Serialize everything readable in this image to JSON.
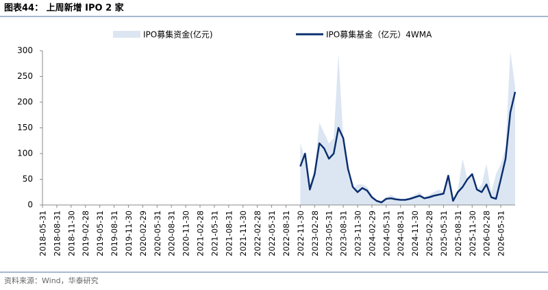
{
  "chart_data": {
    "type": "line",
    "title": "图表44：  上周新增 IPO 2 家",
    "source": "资料来源：Wind，华泰研究",
    "categories": [
      "2018-05-31",
      null,
      null,
      "2018-08-31",
      null,
      null,
      "2018-11-30",
      null,
      null,
      "2019-02-28",
      null,
      null,
      "2019-05-31",
      null,
      null,
      "2019-08-31",
      null,
      null,
      "2019-11-30",
      null,
      null,
      "2020-02-29",
      null,
      null,
      "2020-05-31",
      null,
      null,
      "2020-08-31",
      null,
      null,
      "2020-11-30",
      null,
      null,
      "2021-02-28",
      null,
      null,
      "2021-05-31",
      null,
      null,
      "2021-08-31",
      null,
      null,
      "2021-11-30",
      null,
      null,
      "2022-02-28",
      null,
      null,
      "2022-05-31",
      null,
      null,
      "2022-08-31",
      null,
      null,
      "2022-11-30",
      null,
      null,
      "2023-02-28",
      null,
      null,
      "2023-05-31",
      null,
      null,
      "2023-08-31",
      null,
      null,
      "2023-11-30",
      null,
      null,
      "2024-02-29",
      null,
      null,
      "2024-05-31",
      null,
      null,
      "2024-08-31",
      null,
      null,
      "2024-11-30",
      null,
      null,
      "2025-02-28",
      null,
      null,
      "2025-05-31",
      null,
      null,
      "2025-08-31",
      null,
      null,
      "2025-11-30",
      null,
      null,
      "2026-02-28",
      null,
      null,
      "2026-05-31",
      null,
      null,
      null
    ],
    "series": [
      {
        "name": "IPO募集资金(亿元)",
        "type": "area",
        "color": "#dce6f2",
        "values": [
          null,
          null,
          null,
          null,
          null,
          null,
          null,
          null,
          null,
          null,
          null,
          null,
          null,
          null,
          null,
          null,
          null,
          null,
          null,
          null,
          null,
          null,
          null,
          null,
          null,
          null,
          null,
          null,
          null,
          null,
          null,
          null,
          null,
          null,
          null,
          null,
          null,
          null,
          null,
          null,
          null,
          null,
          null,
          null,
          null,
          null,
          null,
          null,
          null,
          null,
          null,
          null,
          null,
          null,
          120,
          90,
          40,
          70,
          160,
          140,
          120,
          130,
          295,
          130,
          60,
          30,
          40,
          40,
          35,
          20,
          10,
          8,
          15,
          20,
          15,
          12,
          12,
          15,
          20,
          25,
          15,
          20,
          25,
          30,
          25,
          60,
          10,
          30,
          90,
          50,
          60,
          30,
          40,
          80,
          25,
          60,
          80,
          110,
          300,
          230
        ]
      },
      {
        "name": "IPO募集基金（亿元）4WMA",
        "type": "line",
        "color": "#0b2f6e",
        "values": [
          null,
          null,
          null,
          null,
          null,
          null,
          null,
          null,
          null,
          null,
          null,
          null,
          null,
          null,
          null,
          null,
          null,
          null,
          null,
          null,
          null,
          null,
          null,
          null,
          null,
          null,
          null,
          null,
          null,
          null,
          null,
          null,
          null,
          null,
          null,
          null,
          null,
          null,
          null,
          null,
          null,
          null,
          null,
          null,
          null,
          null,
          null,
          null,
          null,
          null,
          null,
          null,
          null,
          null,
          75,
          100,
          30,
          60,
          120,
          110,
          90,
          100,
          150,
          130,
          70,
          35,
          25,
          33,
          28,
          15,
          8,
          5,
          12,
          13,
          11,
          10,
          10,
          12,
          15,
          18,
          13,
          15,
          18,
          20,
          22,
          57,
          8,
          25,
          35,
          50,
          60,
          30,
          25,
          40,
          15,
          12,
          50,
          90,
          180,
          220
        ]
      }
    ],
    "ylim": [
      0,
      300
    ],
    "yticks": [
      0,
      50,
      100,
      150,
      200,
      250,
      300
    ],
    "grid": false
  }
}
